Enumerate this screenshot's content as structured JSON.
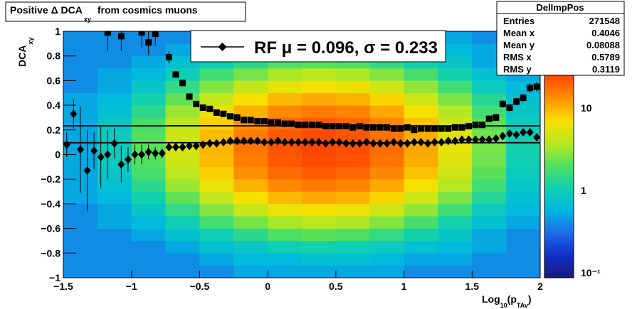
{
  "chart_data": {
    "type": "heatmap",
    "title_parts": [
      "Positive Δ DCA",
      "xy",
      "from cosmics muons"
    ],
    "y_label_parts": [
      "DCA",
      "xy"
    ],
    "x_label_parts": [
      "Log",
      "10",
      "(p",
      "TAv",
      ")"
    ],
    "xlim": [
      -1.5,
      2
    ],
    "ylim": [
      -1,
      1
    ],
    "xticks": [
      {
        "value": -1.5,
        "label": "−1.5"
      },
      {
        "value": -1,
        "label": "−1"
      },
      {
        "value": -0.5,
        "label": "−0.5"
      },
      0,
      0.5,
      1,
      1.5,
      2
    ],
    "yticks": [
      {
        "value": -1,
        "label": "−1"
      },
      {
        "value": -0.8,
        "label": "−0.8"
      },
      {
        "value": -0.6,
        "label": "−0.6"
      },
      {
        "value": -0.4,
        "label": "−0.4"
      },
      {
        "value": -0.2,
        "label": "−0.2"
      },
      0,
      0.2,
      0.4,
      0.6,
      0.8,
      1
    ],
    "zlim": [
      0.087,
      85
    ],
    "zlog": true,
    "zticks": [
      {
        "value": 0.1,
        "label": "10⁻¹"
      },
      1,
      10
    ],
    "palette": [
      "#1a1a7a",
      "#1030c8",
      "#1e6ae8",
      "#00b8e0",
      "#10d0b0",
      "#50e060",
      "#b8e820",
      "#f8e000",
      "#ff9000",
      "#ff4a00",
      "#e01000",
      "#b00000"
    ],
    "heatmap": {
      "xbins": [
        -1.5,
        -1.25,
        -1,
        -0.75,
        -0.5,
        -0.25,
        0,
        0.25,
        0.5,
        0.75,
        1,
        1.25,
        1.5,
        1.75,
        2
      ],
      "ybins": [
        -1,
        -0.9,
        -0.8,
        -0.7,
        -0.6,
        -0.5,
        -0.4,
        -0.3,
        -0.2,
        -0.1,
        0,
        0.1,
        0.2,
        0.3,
        0.4,
        0.5,
        0.6,
        0.7,
        0.8,
        0.9,
        1
      ],
      "z": [
        [
          0.4,
          0.4,
          0.4,
          0.4,
          0.4,
          0.4,
          0.5,
          0.5,
          0.5,
          0.5,
          0.5,
          0.5,
          0.5,
          0.5,
          0.5,
          0.4,
          0.4,
          0.4,
          0.4,
          0.4
        ],
        [
          0.4,
          0.4,
          0.4,
          0.4,
          0.5,
          0.5,
          0.6,
          0.7,
          0.8,
          0.9,
          0.9,
          0.9,
          0.8,
          0.7,
          0.6,
          0.5,
          0.5,
          0.4,
          0.4,
          0.4
        ],
        [
          0.4,
          0.4,
          0.4,
          0.5,
          0.6,
          0.8,
          1.1,
          1.4,
          1.8,
          2.0,
          2.1,
          2.0,
          1.8,
          1.4,
          1.1,
          0.8,
          0.6,
          0.5,
          0.4,
          0.4
        ],
        [
          0.4,
          0.4,
          0.5,
          0.7,
          1.0,
          1.5,
          2.2,
          3.1,
          3.9,
          4.6,
          4.8,
          4.6,
          3.9,
          3.1,
          2.2,
          1.5,
          1.0,
          0.7,
          0.5,
          0.4
        ],
        [
          0.4,
          0.5,
          0.7,
          1.0,
          1.7,
          2.7,
          4.2,
          6.0,
          7.8,
          9.2,
          9.7,
          9.2,
          7.8,
          6.0,
          4.2,
          2.7,
          1.7,
          1.0,
          0.7,
          0.5
        ],
        [
          0.5,
          0.6,
          0.8,
          1.4,
          2.5,
          4.3,
          6.9,
          10.0,
          13.0,
          15.3,
          16.2,
          15.3,
          13.0,
          10.0,
          6.9,
          4.3,
          2.5,
          1.4,
          0.8,
          0.6
        ],
        [
          0.5,
          0.6,
          1.0,
          1.9,
          3.4,
          5.9,
          9.4,
          13.8,
          18.0,
          21.2,
          22.4,
          21.2,
          18.0,
          13.8,
          9.4,
          5.9,
          3.4,
          1.9,
          1.0,
          0.6
        ],
        [
          0.5,
          0.7,
          1.1,
          2.1,
          3.8,
          6.7,
          10.7,
          15.7,
          20.4,
          24.1,
          25.4,
          24.1,
          20.4,
          15.7,
          10.7,
          6.7,
          3.8,
          2.1,
          1.1,
          0.7
        ],
        [
          0.5,
          0.7,
          1.0,
          1.9,
          3.5,
          6.2,
          9.8,
          14.4,
          18.8,
          22.2,
          23.4,
          22.2,
          18.8,
          14.4,
          9.8,
          6.2,
          3.5,
          1.9,
          1.0,
          0.7
        ],
        [
          0.5,
          0.6,
          0.9,
          1.5,
          2.7,
          4.7,
          7.5,
          10.9,
          14.2,
          16.7,
          17.7,
          16.7,
          14.2,
          10.9,
          7.5,
          4.7,
          2.7,
          1.5,
          0.9,
          0.6
        ],
        [
          0.4,
          0.5,
          0.7,
          1.1,
          1.8,
          3.0,
          4.7,
          6.8,
          8.8,
          10.3,
          10.9,
          10.3,
          8.8,
          6.8,
          4.7,
          3.0,
          1.8,
          1.1,
          0.7,
          0.5
        ],
        [
          0.4,
          0.5,
          0.6,
          0.8,
          1.1,
          1.7,
          2.6,
          3.6,
          4.6,
          5.4,
          5.7,
          5.4,
          4.6,
          3.6,
          2.6,
          1.7,
          1.1,
          0.8,
          0.6,
          0.5
        ],
        [
          0.4,
          0.4,
          0.5,
          0.5,
          0.7,
          0.9,
          1.3,
          1.7,
          2.1,
          2.4,
          2.5,
          2.4,
          2.1,
          1.7,
          1.3,
          0.9,
          0.7,
          0.5,
          0.5,
          0.4
        ],
        [
          0.4,
          0.4,
          0.4,
          0.4,
          0.5,
          0.6,
          0.7,
          0.8,
          0.9,
          1.0,
          1.1,
          1.0,
          0.9,
          0.8,
          0.7,
          0.6,
          0.5,
          0.4,
          0.4,
          0.4
        ]
      ]
    },
    "x": [
      -1.475,
      -1.425,
      -1.375,
      -1.325,
      -1.275,
      -1.225,
      -1.175,
      -1.125,
      -1.075,
      -1.025,
      -0.975,
      -0.925,
      -0.875,
      -0.825,
      -0.775,
      -0.725,
      -0.675,
      -0.625,
      -0.575,
      -0.525,
      -0.475,
      -0.425,
      -0.375,
      -0.325,
      -0.275,
      -0.225,
      -0.175,
      -0.125,
      -0.075,
      -0.025,
      0.025,
      0.075,
      0.125,
      0.175,
      0.225,
      0.275,
      0.325,
      0.375,
      0.425,
      0.475,
      0.525,
      0.575,
      0.625,
      0.675,
      0.725,
      0.775,
      0.825,
      0.875,
      0.925,
      0.975,
      1.025,
      1.075,
      1.125,
      1.175,
      1.225,
      1.275,
      1.325,
      1.375,
      1.425,
      1.475,
      1.525,
      1.575,
      1.625,
      1.675,
      1.725,
      1.775,
      1.825,
      1.875,
      1.925,
      1.975
    ],
    "series": [
      {
        "marker": "diamond",
        "color": "#000000",
        "values": [
          0.08,
          0.33,
          0.04,
          -0.13,
          0.03,
          -0.02,
          0.0,
          0.09,
          -0.08,
          -0.04,
          0.0,
          0.0,
          0.02,
          0.01,
          0.01,
          0.06,
          0.06,
          0.06,
          0.07,
          0.07,
          0.08,
          0.09,
          0.09,
          0.1,
          0.11,
          0.11,
          0.11,
          0.11,
          0.11,
          0.1,
          0.1,
          0.11,
          0.1,
          0.1,
          0.1,
          0.1,
          0.1,
          0.1,
          0.09,
          0.1,
          0.1,
          0.09,
          0.09,
          0.09,
          0.1,
          0.09,
          0.09,
          0.09,
          0.1,
          0.09,
          0.09,
          0.1,
          0.1,
          0.09,
          0.1,
          0.1,
          0.11,
          0.11,
          0.12,
          0.12,
          0.12,
          0.12,
          0.12,
          0.13,
          0.15,
          0.17,
          0.16,
          0.18,
          0.18,
          0.14
        ],
        "errors": [
          0.1,
          0.12,
          0.35,
          0.33,
          0.15,
          0.25,
          0.2,
          0.12,
          0.15,
          0.1,
          0.08,
          0.08,
          0.06,
          0.05,
          0.04,
          0.03,
          0.02,
          0.02,
          0.02,
          0.02,
          0.02,
          0.02,
          0.02,
          0.01,
          0.01,
          0.01,
          0.01,
          0.01,
          0.01,
          0.01,
          0.01,
          0.01,
          0.01,
          0.01,
          0.01,
          0.01,
          0.01,
          0.01,
          0.01,
          0.01,
          0.01,
          0.01,
          0.01,
          0.01,
          0.01,
          0.01,
          0.01,
          0.01,
          0.01,
          0.01,
          0.01,
          0.01,
          0.01,
          0.01,
          0.01,
          0.01,
          0.01,
          0.01,
          0.01,
          0.01,
          0.01,
          0.02,
          0.02,
          0.02,
          0.02,
          0.02,
          0.02,
          0.03,
          0.03,
          0.03
        ]
      },
      {
        "marker": "square",
        "color": "#000000",
        "values": [
          null,
          null,
          null,
          null,
          null,
          null,
          0.99,
          null,
          0.96,
          null,
          null,
          0.99,
          0.91,
          0.98,
          null,
          0.79,
          0.65,
          0.58,
          0.47,
          0.41,
          0.38,
          0.37,
          0.34,
          0.33,
          0.31,
          0.3,
          0.28,
          0.28,
          0.27,
          0.27,
          0.26,
          0.26,
          0.25,
          0.25,
          0.24,
          0.24,
          0.24,
          0.24,
          0.23,
          0.23,
          0.23,
          0.23,
          0.22,
          0.23,
          0.22,
          0.22,
          0.22,
          0.22,
          0.21,
          0.21,
          0.22,
          0.2,
          0.21,
          0.21,
          0.21,
          0.21,
          0.21,
          0.22,
          0.22,
          0.23,
          0.24,
          0.24,
          0.29,
          0.3,
          0.41,
          0.38,
          0.43,
          0.46,
          0.54,
          0.55
        ],
        "errors": [
          null,
          null,
          null,
          null,
          null,
          null,
          0.15,
          null,
          0.12,
          null,
          null,
          0.12,
          0.1,
          0.1,
          null,
          0.05,
          0.03,
          0.02,
          0.01,
          0.01,
          0.01,
          0.01,
          0.01,
          0.01,
          0.01,
          0.01,
          0.01,
          0.01,
          0.01,
          0.01,
          0.01,
          0.01,
          0.01,
          0.01,
          0.01,
          0.01,
          0.01,
          0.01,
          0.01,
          0.01,
          0.01,
          0.01,
          0.01,
          0.01,
          0.01,
          0.01,
          0.01,
          0.01,
          0.01,
          0.01,
          0.01,
          0.01,
          0.01,
          0.01,
          0.01,
          0.01,
          0.01,
          0.01,
          0.01,
          0.01,
          0.01,
          0.01,
          0.02,
          0.02,
          0.03,
          0.03,
          0.03,
          0.03,
          0.04,
          0.04
        ]
      }
    ],
    "fit": {
      "text": "RF μ =  0.096, σ =   0.233",
      "mu": 0.096,
      "sigma": 0.233,
      "color": "#000000"
    },
    "stats": {
      "title": "DelImpPos",
      "rows": [
        [
          "Entries",
          271548
        ],
        [
          "Mean x",
          0.4046
        ],
        [
          "Mean y",
          0.08088
        ],
        [
          "RMS x",
          0.5789
        ],
        [
          "RMS y",
          0.3119
        ]
      ]
    }
  }
}
